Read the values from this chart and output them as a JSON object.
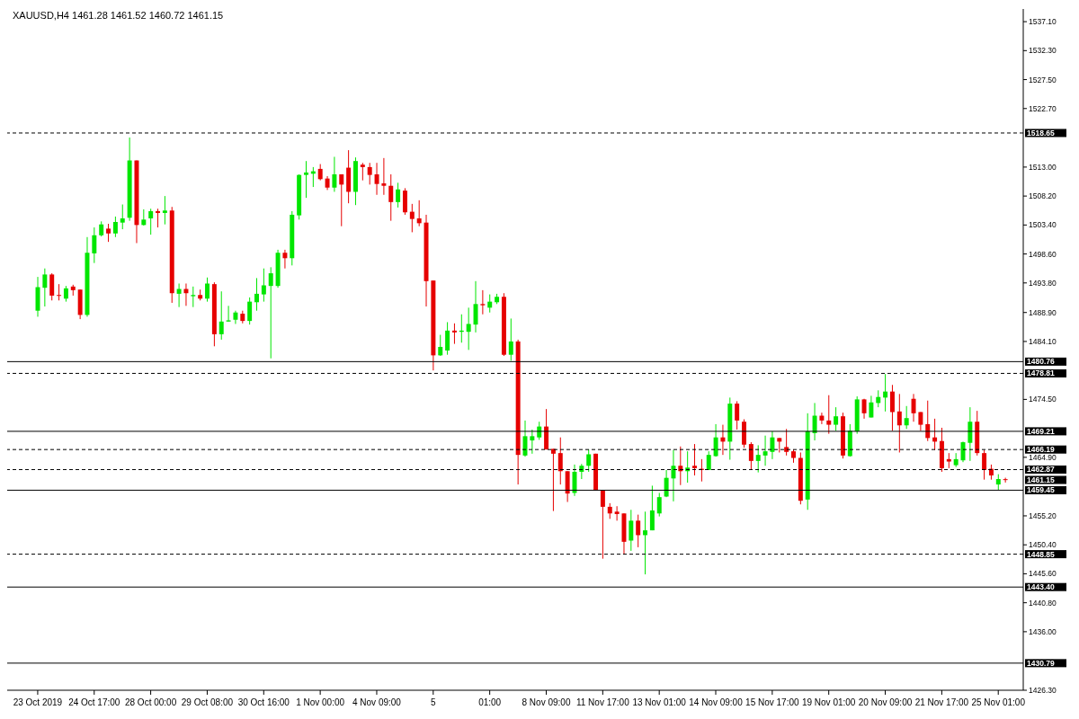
{
  "chart_data": {
    "type": "candlestick",
    "title": "XAUUSD,H4  1461.28 1461.52 1460.72 1461.15",
    "categories": [
      "23 Oct 2019",
      null,
      null,
      null,
      null,
      null,
      null,
      null,
      "24 Oct 17:00",
      null,
      null,
      null,
      null,
      null,
      null,
      null,
      "28 Oct 00:00",
      null,
      null,
      null,
      null,
      null,
      null,
      null,
      "29 Oct 08:00",
      null,
      null,
      null,
      null,
      null,
      null,
      null,
      "30 Oct 16:00",
      null,
      null,
      null,
      null,
      null,
      null,
      null,
      "1 Nov 00:00",
      null,
      null,
      null,
      null,
      null,
      null,
      null,
      "4 Nov 09:00",
      null,
      null,
      null,
      null,
      null,
      null,
      null,
      "5",
      null,
      null,
      null,
      null,
      null,
      null,
      null,
      "01:00",
      null,
      null,
      null,
      null,
      null,
      null,
      null,
      "8 Nov 09:00",
      null,
      null,
      null,
      null,
      null,
      null,
      null,
      "11 Nov 17:00",
      null,
      null,
      null,
      null,
      null,
      null,
      null,
      "13 Nov 01:00",
      null,
      null,
      null,
      null,
      null,
      null,
      null,
      "14 Nov 09:00",
      null,
      null,
      null,
      null,
      null,
      null,
      null,
      "15 Nov 17:00",
      null,
      null,
      null,
      null,
      null,
      null,
      null,
      "19 Nov 01:00",
      null,
      null,
      null,
      null,
      null,
      null,
      null,
      "20 Nov 09:00",
      null,
      null,
      null,
      null,
      null,
      null,
      null,
      "21 Nov 17:00",
      null,
      null,
      null,
      null,
      null,
      null,
      null,
      "25 Nov 01:00",
      null
    ],
    "ohlc": [
      [
        1489.2,
        1494.8,
        1488.2,
        1493.1
      ],
      [
        1493.0,
        1496.2,
        1489.9,
        1495.2
      ],
      [
        1495.2,
        1495.4,
        1490.9,
        1491.7
      ],
      [
        1491.8,
        1493.6,
        1490.9,
        1491.7
      ],
      [
        1491.2,
        1493.3,
        1490.7,
        1492.9
      ],
      [
        1493.2,
        1493.5,
        1491.7,
        1492.6
      ],
      [
        1492.7,
        1492.7,
        1487.8,
        1488.5
      ],
      [
        1488.5,
        1501.4,
        1488.2,
        1498.8
      ],
      [
        1498.7,
        1503.0,
        1497.1,
        1501.7
      ],
      [
        1501.7,
        1504.0,
        1501.5,
        1503.5
      ],
      [
        1502.8,
        1503.6,
        1500.6,
        1502.0
      ],
      [
        1502.0,
        1504.8,
        1501.4,
        1503.9
      ],
      [
        1503.8,
        1506.8,
        1502.7,
        1504.5
      ],
      [
        1504.6,
        1517.9,
        1504.1,
        1514.1
      ],
      [
        1514.1,
        1514.1,
        1500.4,
        1503.4
      ],
      [
        1503.4,
        1506.0,
        1503.3,
        1504.3
      ],
      [
        1504.5,
        1506.1,
        1501.8,
        1505.7
      ],
      [
        1505.7,
        1506.1,
        1503.0,
        1505.4
      ],
      [
        1505.4,
        1508.2,
        1503.5,
        1505.8
      ],
      [
        1505.8,
        1506.4,
        1490.5,
        1492.1
      ],
      [
        1492.0,
        1493.7,
        1489.8,
        1492.8
      ],
      [
        1492.8,
        1493.7,
        1490.0,
        1492.1
      ],
      [
        1491.6,
        1493.2,
        1489.8,
        1491.8
      ],
      [
        1491.8,
        1492.7,
        1490.9,
        1491.2
      ],
      [
        1491.2,
        1494.7,
        1490.7,
        1493.7
      ],
      [
        1493.6,
        1493.9,
        1483.3,
        1485.3
      ],
      [
        1485.3,
        1492.4,
        1484.4,
        1487.4
      ],
      [
        1487.4,
        1490.0,
        1487.4,
        1487.6
      ],
      [
        1487.7,
        1489.2,
        1487.0,
        1488.9
      ],
      [
        1488.7,
        1489.2,
        1487.1,
        1487.5
      ],
      [
        1487.5,
        1491.4,
        1486.9,
        1490.7
      ],
      [
        1490.6,
        1494.6,
        1489.2,
        1492.0
      ],
      [
        1491.9,
        1496.2,
        1490.7,
        1493.4
      ],
      [
        1493.3,
        1496.4,
        1481.3,
        1495.4
      ],
      [
        1493.3,
        1499.3,
        1493.0,
        1498.8
      ],
      [
        1498.8,
        1499.3,
        1496.2,
        1497.9
      ],
      [
        1497.9,
        1505.7,
        1496.7,
        1505.1
      ],
      [
        1505.0,
        1511.8,
        1504.3,
        1511.7
      ],
      [
        1511.7,
        1514.0,
        1507.9,
        1512.1
      ],
      [
        1511.9,
        1513.0,
        1509.7,
        1512.3
      ],
      [
        1512.7,
        1513.5,
        1510.8,
        1511.0
      ],
      [
        1511.1,
        1511.5,
        1509.2,
        1509.6
      ],
      [
        1509.6,
        1514.7,
        1508.9,
        1511.8
      ],
      [
        1511.8,
        1511.8,
        1503.2,
        1510.1
      ],
      [
        1512.9,
        1515.8,
        1507.0,
        1508.9
      ],
      [
        1508.9,
        1514.6,
        1506.7,
        1514.0
      ],
      [
        1513.4,
        1513.7,
        1510.8,
        1513.0
      ],
      [
        1513.0,
        1513.7,
        1510.1,
        1511.7
      ],
      [
        1511.8,
        1513.7,
        1508.4,
        1510.2
      ],
      [
        1510.3,
        1514.5,
        1508.4,
        1509.9
      ],
      [
        1509.9,
        1511.8,
        1504.1,
        1507.2
      ],
      [
        1507.2,
        1510.4,
        1506.3,
        1509.3
      ],
      [
        1509.1,
        1509.5,
        1505.1,
        1505.5
      ],
      [
        1505.6,
        1506.9,
        1502.2,
        1504.4
      ],
      [
        1504.5,
        1507.5,
        1503.2,
        1503.7
      ],
      [
        1503.8,
        1505.1,
        1489.9,
        1494.1
      ],
      [
        1494.2,
        1494.2,
        1479.3,
        1481.8
      ],
      [
        1481.8,
        1485.2,
        1481.7,
        1483.2
      ],
      [
        1482.6,
        1487.3,
        1481.9,
        1485.9
      ],
      [
        1485.9,
        1487.1,
        1483.7,
        1485.6
      ],
      [
        1485.7,
        1488.6,
        1483.9,
        1485.9
      ],
      [
        1485.7,
        1489.7,
        1482.7,
        1487.0
      ],
      [
        1486.9,
        1494.1,
        1485.6,
        1490.3
      ],
      [
        1490.3,
        1492.6,
        1488.6,
        1490.1
      ],
      [
        1489.7,
        1491.9,
        1488.9,
        1490.7
      ],
      [
        1490.6,
        1492.0,
        1490.3,
        1491.5
      ],
      [
        1491.5,
        1492.1,
        1481.7,
        1481.9
      ],
      [
        1481.9,
        1487.9,
        1480.9,
        1484.1
      ],
      [
        1484.1,
        1484.4,
        1460.4,
        1465.3
      ],
      [
        1465.2,
        1471.0,
        1465.0,
        1468.4
      ],
      [
        1467.7,
        1469.5,
        1465.5,
        1468.4
      ],
      [
        1468.2,
        1470.8,
        1467.8,
        1470.0
      ],
      [
        1470.0,
        1472.9,
        1466.2,
        1466.2
      ],
      [
        1466.3,
        1466.3,
        1456.0,
        1465.5
      ],
      [
        1465.6,
        1468.2,
        1460.4,
        1462.6
      ],
      [
        1462.6,
        1462.6,
        1457.5,
        1458.9
      ],
      [
        1459.0,
        1463.7,
        1458.5,
        1462.5
      ],
      [
        1462.5,
        1463.8,
        1461.3,
        1463.5
      ],
      [
        1463.5,
        1466.2,
        1462.5,
        1465.4
      ],
      [
        1465.5,
        1465.5,
        1459.4,
        1459.4
      ],
      [
        1459.4,
        1459.4,
        1448.1,
        1456.7
      ],
      [
        1456.7,
        1457.3,
        1454.7,
        1455.6
      ],
      [
        1455.9,
        1456.8,
        1454.4,
        1455.5
      ],
      [
        1455.6,
        1455.6,
        1448.8,
        1450.9
      ],
      [
        1451.1,
        1456.2,
        1449.4,
        1454.4
      ],
      [
        1454.4,
        1455.4,
        1450.0,
        1452.0
      ],
      [
        1452.0,
        1455.9,
        1445.5,
        1452.8
      ],
      [
        1452.8,
        1460.2,
        1452.8,
        1456.1
      ],
      [
        1455.6,
        1459.0,
        1455.1,
        1458.3
      ],
      [
        1458.4,
        1462.8,
        1458.3,
        1461.5
      ],
      [
        1461.4,
        1466.1,
        1457.6,
        1463.5
      ],
      [
        1463.5,
        1466.7,
        1460.3,
        1462.6
      ],
      [
        1462.6,
        1465.9,
        1460.7,
        1463.2
      ],
      [
        1463.5,
        1467.1,
        1461.9,
        1463.1
      ],
      [
        1463.0,
        1464.6,
        1460.9,
        1462.8
      ],
      [
        1462.8,
        1465.9,
        1462.8,
        1465.3
      ],
      [
        1465.1,
        1470.4,
        1465.0,
        1468.2
      ],
      [
        1468.2,
        1470.3,
        1465.3,
        1467.5
      ],
      [
        1467.5,
        1474.8,
        1464.5,
        1473.8
      ],
      [
        1473.8,
        1474.2,
        1469.5,
        1471.0
      ],
      [
        1470.8,
        1471.2,
        1466.5,
        1467.0
      ],
      [
        1467.1,
        1467.4,
        1462.8,
        1464.3
      ],
      [
        1464.3,
        1466.9,
        1462.4,
        1465.3
      ],
      [
        1465.2,
        1468.5,
        1463.5,
        1465.9
      ],
      [
        1465.8,
        1469.2,
        1464.6,
        1468.2
      ],
      [
        1468.1,
        1468.1,
        1465.7,
        1467.5
      ],
      [
        1466.6,
        1469.6,
        1465.2,
        1465.8
      ],
      [
        1465.9,
        1466.2,
        1464.0,
        1464.8
      ],
      [
        1464.8,
        1465.7,
        1457.1,
        1457.7
      ],
      [
        1457.9,
        1472.2,
        1456.2,
        1469.2
      ],
      [
        1468.9,
        1473.9,
        1467.7,
        1471.8
      ],
      [
        1471.8,
        1472.3,
        1470.4,
        1471.0
      ],
      [
        1471.0,
        1475.2,
        1468.8,
        1470.3
      ],
      [
        1470.3,
        1473.2,
        1469.3,
        1471.7
      ],
      [
        1471.7,
        1472.3,
        1464.7,
        1465.2
      ],
      [
        1465.1,
        1470.4,
        1465.0,
        1469.3
      ],
      [
        1469.2,
        1475.0,
        1468.8,
        1474.5
      ],
      [
        1474.5,
        1474.6,
        1471.3,
        1472.2
      ],
      [
        1471.5,
        1475.1,
        1471.5,
        1474.0
      ],
      [
        1473.9,
        1476.0,
        1473.2,
        1474.9
      ],
      [
        1474.8,
        1478.7,
        1472.5,
        1475.8
      ],
      [
        1475.8,
        1476.9,
        1469.3,
        1472.4
      ],
      [
        1472.5,
        1475.4,
        1465.7,
        1470.2
      ],
      [
        1470.2,
        1473.4,
        1469.6,
        1471.4
      ],
      [
        1474.6,
        1475.4,
        1470.8,
        1472.2
      ],
      [
        1472.4,
        1472.4,
        1469.3,
        1470.3
      ],
      [
        1470.4,
        1474.3,
        1467.6,
        1468.1
      ],
      [
        1468.2,
        1471.3,
        1466.1,
        1467.5
      ],
      [
        1467.6,
        1469.8,
        1462.5,
        1463.1
      ],
      [
        1464.6,
        1465.6,
        1463.1,
        1464.2
      ],
      [
        1463.6,
        1465.6,
        1463.3,
        1464.6
      ],
      [
        1464.4,
        1467.5,
        1464.1,
        1467.4
      ],
      [
        1467.3,
        1473.2,
        1464.3,
        1470.8
      ],
      [
        1470.8,
        1472.6,
        1465.2,
        1465.6
      ],
      [
        1465.6,
        1466.1,
        1461.2,
        1462.8
      ],
      [
        1463.0,
        1463.7,
        1461.2,
        1461.9
      ],
      [
        1460.4,
        1462.1,
        1459.5,
        1461.3
      ],
      [
        1461.28,
        1461.52,
        1460.72,
        1461.15
      ]
    ],
    "colors": [
      "#00e600",
      "#00e600",
      "#e60000",
      "#e60000",
      "#00e600",
      "#e60000",
      "#e60000",
      "#00e600",
      "#00e600",
      "#00e600",
      "#e60000",
      "#00e600",
      "#00e600",
      "#00e600",
      "#e60000",
      "#00e600",
      "#00e600",
      "#e60000",
      "#00e600",
      "#e60000",
      "#00e600",
      "#e60000",
      "#00e600",
      "#e60000",
      "#00e600",
      "#e60000",
      "#00e600",
      "#00e600",
      "#00e600",
      "#e60000",
      "#00e600",
      "#00e600",
      "#00e600",
      "#00e600",
      "#00e600",
      "#e60000",
      "#00e600",
      "#00e600",
      "#00e600",
      "#00e600",
      "#e60000",
      "#e60000",
      "#00e600",
      "#e60000",
      "#e60000",
      "#00e600",
      "#e60000",
      "#e60000",
      "#e60000",
      "#e60000",
      "#e60000",
      "#00e600",
      "#e60000",
      "#e60000",
      "#e60000",
      "#e60000",
      "#e60000",
      "#00e600",
      "#00e600",
      "#e60000",
      "#00e600",
      "#00e600",
      "#00e600",
      "#e60000",
      "#00e600",
      "#00e600",
      "#e60000",
      "#00e600",
      "#e60000",
      "#00e600",
      "#00e600",
      "#00e600",
      "#e60000",
      "#e60000",
      "#e60000",
      "#e60000",
      "#00e600",
      "#00e600",
      "#00e600",
      "#e60000",
      "#e60000",
      "#e60000",
      "#e60000",
      "#e60000",
      "#00e600",
      "#e60000",
      "#00e600",
      "#00e600",
      "#00e600",
      "#00e600",
      "#00e600",
      "#e60000",
      "#00e600",
      "#e60000",
      "#e60000",
      "#00e600",
      "#00e600",
      "#e60000",
      "#00e600",
      "#e60000",
      "#e60000",
      "#e60000",
      "#00e600",
      "#00e600",
      "#00e600",
      "#e60000",
      "#e60000",
      "#e60000",
      "#e60000",
      "#00e600",
      "#00e600",
      "#e60000",
      "#e60000",
      "#00e600",
      "#e60000",
      "#00e600",
      "#00e600",
      "#e60000",
      "#00e600",
      "#00e600",
      "#00e600",
      "#e60000",
      "#e60000",
      "#00e600",
      "#e60000",
      "#e60000",
      "#e60000",
      "#e60000",
      "#e60000",
      "#e60000",
      "#00e600",
      "#00e600",
      "#00e600",
      "#e60000",
      "#e60000",
      "#e60000",
      "#00e600",
      "#e60000"
    ],
    "annotations": [
      "1461.15"
    ],
    "ylim": [
      1426.3,
      1539.2
    ],
    "yticks": [
      {
        "value": 1426.3,
        "label": "1426.30"
      },
      {
        "value": 1436.0,
        "label": "1436.00"
      },
      {
        "value": 1440.8,
        "label": "1440.80"
      },
      {
        "value": 1445.6,
        "label": "1445.60"
      },
      {
        "value": 1450.4,
        "label": "1450.40"
      },
      {
        "value": 1455.2,
        "label": "1455.20"
      },
      {
        "value": 1464.9,
        "label": "1464.90"
      },
      {
        "value": 1474.5,
        "label": "1474.50"
      },
      {
        "value": 1484.1,
        "label": "1484.10"
      },
      {
        "value": 1488.9,
        "label": "1488.90"
      },
      {
        "value": 1493.8,
        "label": "1493.80"
      },
      {
        "value": 1498.6,
        "label": "1498.60"
      },
      {
        "value": 1503.4,
        "label": "1503.40"
      },
      {
        "value": 1508.2,
        "label": "1508.20"
      },
      {
        "value": 1513.0,
        "label": "1513.00"
      },
      {
        "value": 1522.7,
        "label": "1522.70"
      },
      {
        "value": 1527.5,
        "label": "1527.50"
      },
      {
        "value": 1532.3,
        "label": "1532.30"
      },
      {
        "value": 1537.1,
        "label": "1537.10"
      }
    ],
    "ref_lines": [
      {
        "axis": "y",
        "value": 1518.65,
        "label": "1518.65",
        "line_style": "dashed",
        "color": "#000000"
      },
      {
        "axis": "y",
        "value": 1480.76,
        "label": "1480.76",
        "line_style": "solid",
        "color": "#000000"
      },
      {
        "axis": "y",
        "value": 1478.81,
        "label": "1478.81",
        "line_style": "dashed",
        "color": "#000000"
      },
      {
        "axis": "y",
        "value": 1469.21,
        "label": "1469.21",
        "line_style": "solid",
        "color": "#000000"
      },
      {
        "axis": "y",
        "value": 1466.19,
        "label": "1466.19",
        "line_style": "dashed",
        "color": "#000000"
      },
      {
        "axis": "y",
        "value": 1462.87,
        "label": "1462.87",
        "line_style": "dashed",
        "color": "#000000"
      },
      {
        "axis": "y",
        "value": 1459.45,
        "label": "1459.45",
        "line_style": "solid",
        "color": "#000000"
      },
      {
        "axis": "y",
        "value": 1448.85,
        "label": "1448.85",
        "line_style": "dashed",
        "color": "#000000"
      },
      {
        "axis": "y",
        "value": 1443.4,
        "label": "1443.40",
        "line_style": "solid",
        "color": "#000000"
      },
      {
        "axis": "y",
        "value": 1430.79,
        "label": "1430.79",
        "line_style": "solid",
        "color": "#000000"
      }
    ]
  }
}
